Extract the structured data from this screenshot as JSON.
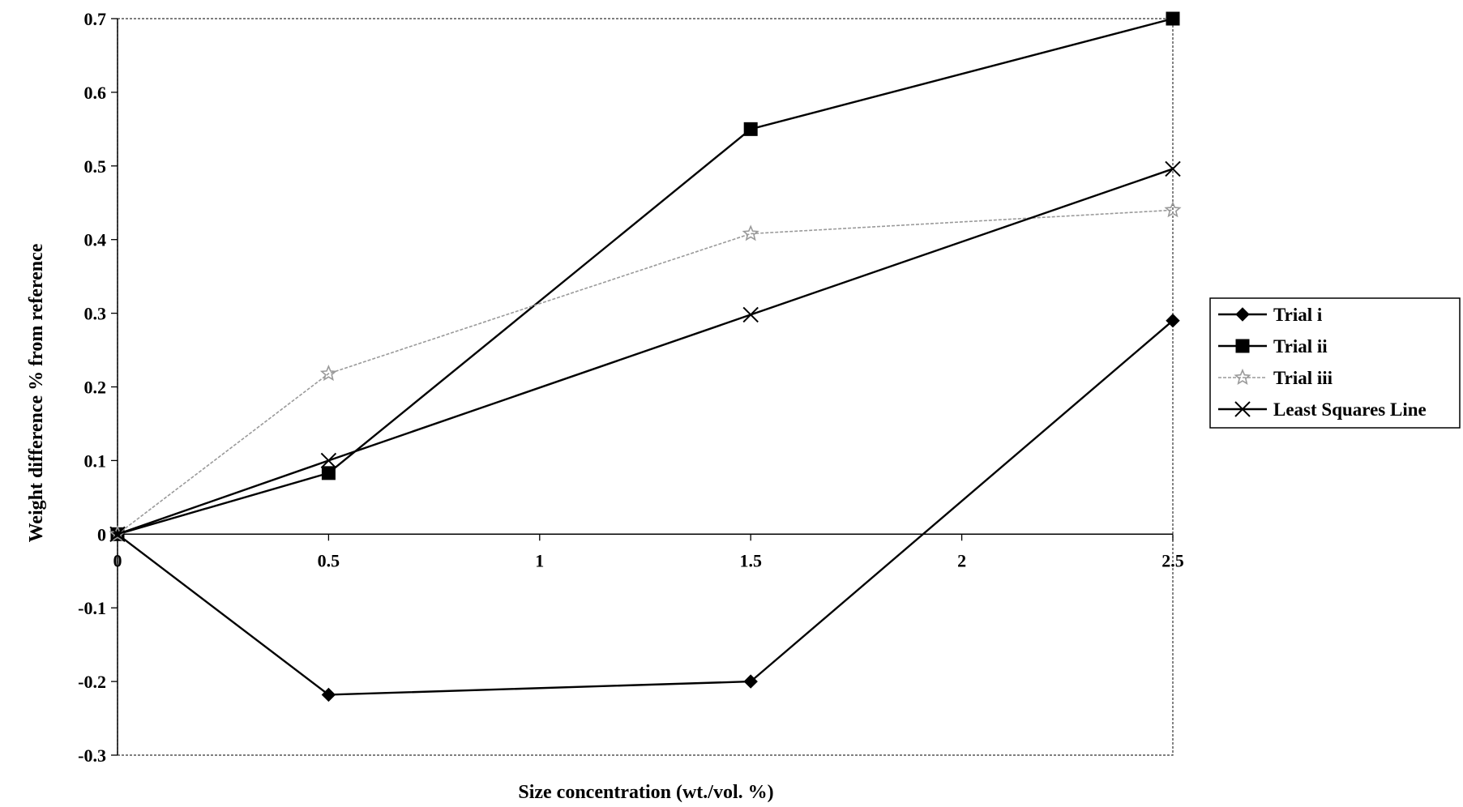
{
  "chart_data": {
    "type": "line",
    "title": "",
    "xlabel": "Size concentration (wt./vol. %)",
    "ylabel": "Weight difference % from reference",
    "xlim": [
      0,
      2.5
    ],
    "ylim": [
      -0.3,
      0.7
    ],
    "x_ticks": [
      0,
      0.5,
      1,
      1.5,
      2,
      2.5
    ],
    "x_tick_labels": [
      "0",
      "0.5",
      "1",
      "1.5",
      "2",
      "2.5"
    ],
    "y_ticks": [
      0.7,
      0.6,
      0.5,
      0.4,
      0.3,
      0.2,
      0.1,
      0,
      -0.1,
      -0.2,
      -0.3
    ],
    "y_tick_labels": [
      "0.7",
      "0.6",
      "0.5",
      "0.4",
      "0.3",
      "0.2",
      "0.1",
      "0",
      "-0.1",
      "-0.2",
      "-0.3"
    ],
    "grid": false,
    "legend_position": "right",
    "series": [
      {
        "name": "Trial i",
        "marker": "diamond",
        "color": "#000000",
        "x": [
          0,
          0.5,
          1.5,
          2.5
        ],
        "values": [
          0,
          -0.218,
          -0.2,
          0.29
        ]
      },
      {
        "name": "Trial ii",
        "marker": "square",
        "color": "#000000",
        "x": [
          0,
          0.5,
          1.5,
          2.5
        ],
        "values": [
          0,
          0.083,
          0.55,
          0.7
        ]
      },
      {
        "name": "Trial iii",
        "marker": "star",
        "color": "#9a9a9a",
        "x": [
          0,
          0.5,
          1.5,
          2.5
        ],
        "values": [
          0,
          0.218,
          0.408,
          0.44
        ]
      },
      {
        "name": "Least Squares Line",
        "marker": "x",
        "color": "#000000",
        "x": [
          0,
          0.5,
          1.5,
          2.5
        ],
        "values": [
          0,
          0.1,
          0.298,
          0.496
        ]
      }
    ]
  }
}
